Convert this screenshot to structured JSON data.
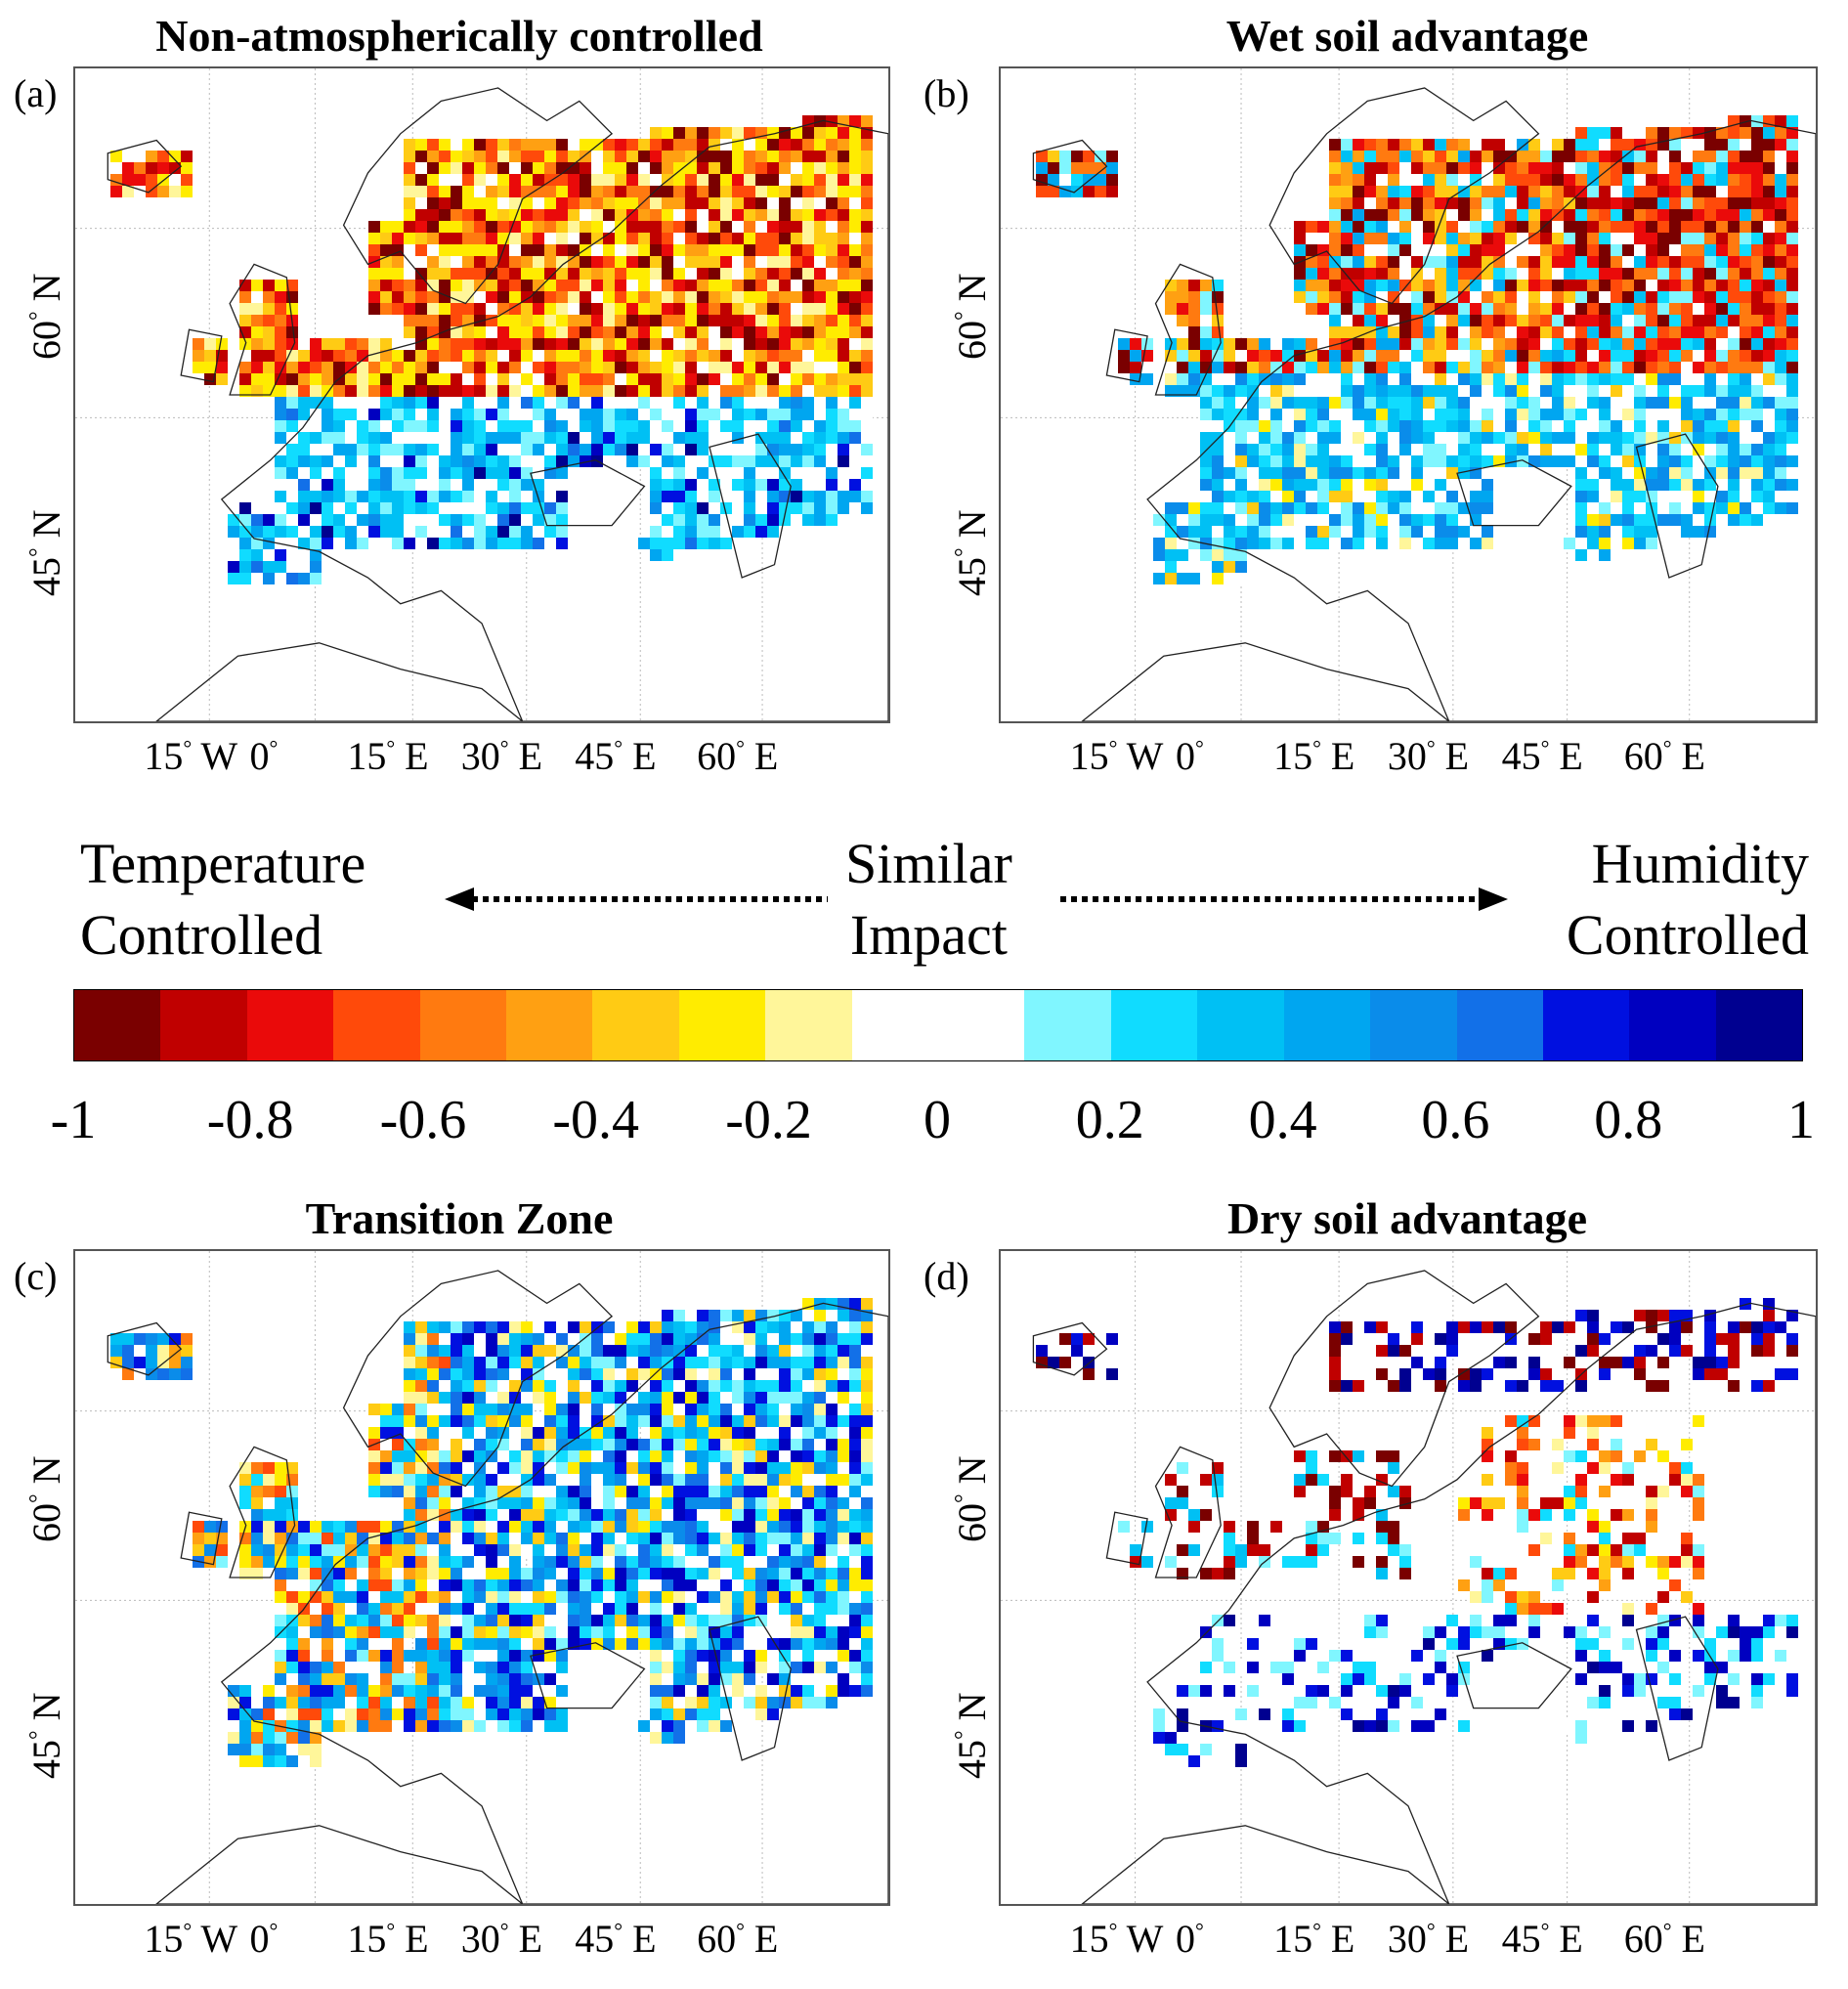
{
  "panels": [
    {
      "id": "a",
      "letter": "(a)",
      "title": "Non-atmospherically controlled"
    },
    {
      "id": "b",
      "letter": "(b)",
      "title": "Wet soil advantage"
    },
    {
      "id": "c",
      "letter": "(c)",
      "title": "Transition Zone"
    },
    {
      "id": "d",
      "letter": "(d)",
      "title": "Dry soil advantage"
    }
  ],
  "axes": {
    "lat_labels": [
      "60 N",
      "45 N"
    ],
    "lon_labels": [
      "15 W",
      "0",
      "15 E",
      "30 E",
      "45 E",
      "60 E"
    ],
    "degree_symbol": "°"
  },
  "legend": {
    "left_line1": "Temperature",
    "left_line2": "Controlled",
    "center_line1": "Similar",
    "center_line2": "Impact",
    "right_line1": "Humidity",
    "right_line2": "Controlled",
    "tick_labels": [
      "-1",
      "-0.8",
      "-0.6",
      "-0.4",
      "-0.2",
      "0",
      "0.2",
      "0.4",
      "0.6",
      "0.8",
      "1"
    ],
    "colors": [
      "#7a0000",
      "#c00000",
      "#ea0a0a",
      "#ff4a0a",
      "#ff7a10",
      "#ffa012",
      "#ffcb14",
      "#ffec00",
      "#fff69a",
      "#ffffff",
      "#ffffff",
      "#80f6ff",
      "#10dcff",
      "#00c0f4",
      "#00a6f0",
      "#0a8cea",
      "#1270e8",
      "#0010e0",
      "#0000c0",
      "#000090"
    ]
  }
}
